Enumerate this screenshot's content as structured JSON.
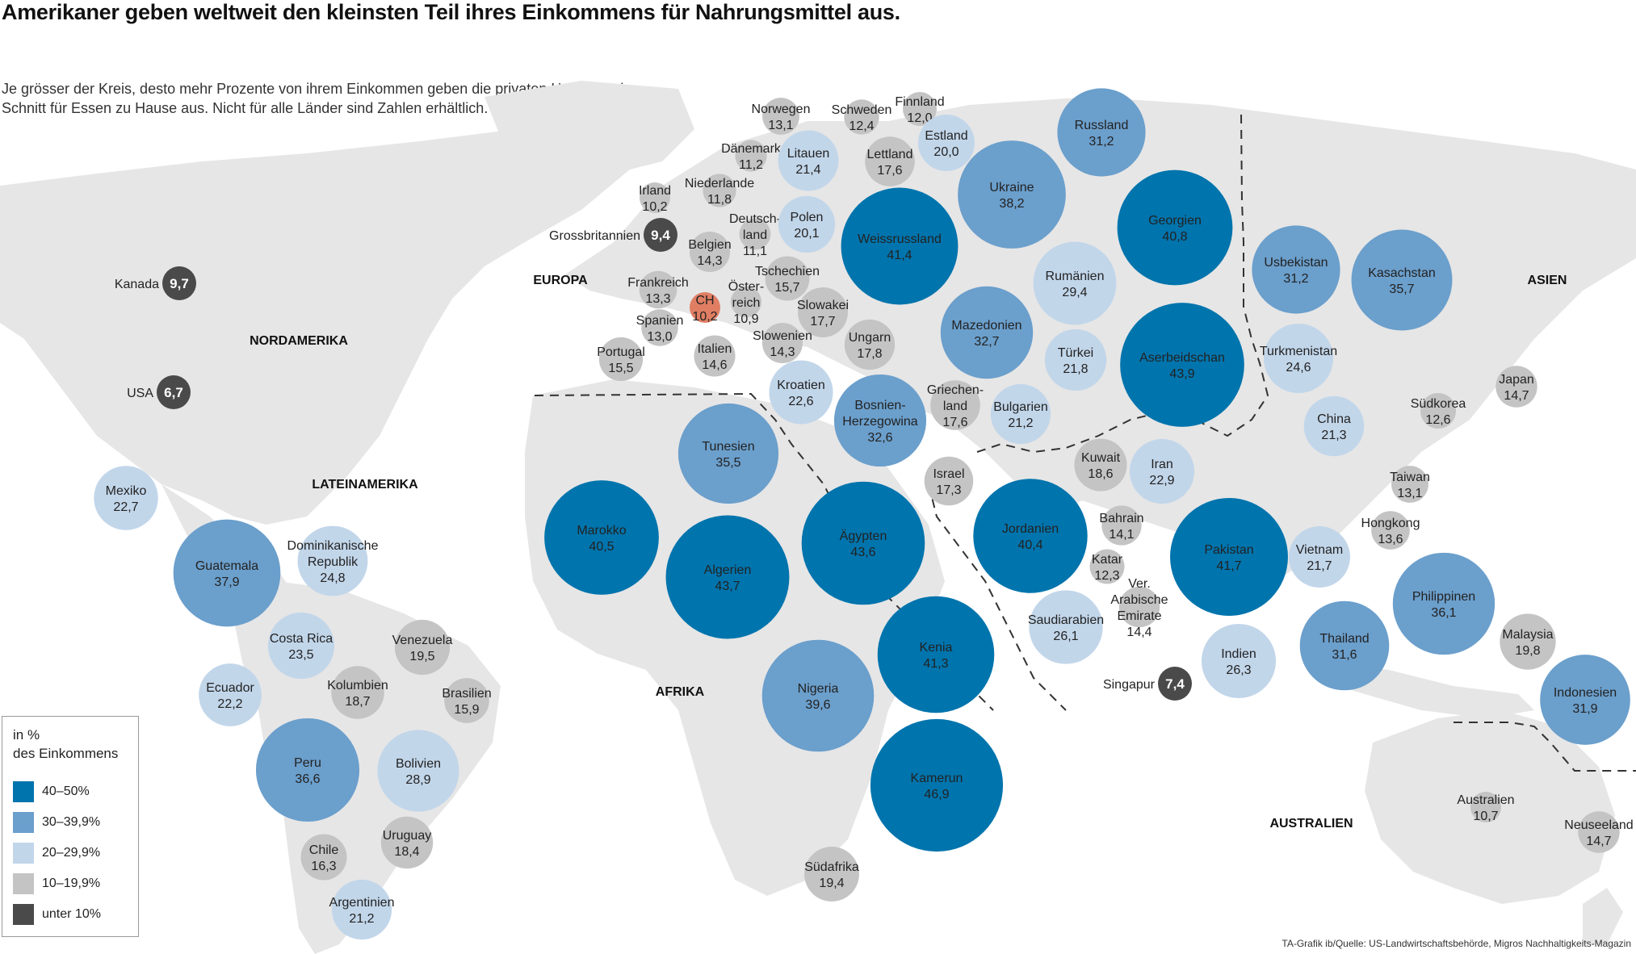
{
  "title": "Amerikaner geben weltweit den kleinsten Teil ihres Einkommens für Nahrungsmittel aus.",
  "subtitle": "Je grösser der Kreis, desto mehr Prozente von ihrem Einkommen geben die privaten Haushalte im Schnitt für Essen zu Hause aus. Nicht für alle Länder sind Zahlen erhältlich.",
  "source": "TA-Grafik ib/Quelle: US-Landwirtschaftsbehörde, Migros Nachhaltigkeits-Magazin",
  "colors": {
    "c40": "#0074ad",
    "c30": "#6b9fcc",
    "c20": "#c2d6ea",
    "c10": "#c4c4c4",
    "under10": "#4a4a4a",
    "ch": "#e07e63",
    "land": "#e6e6e6"
  },
  "legend": {
    "title_line1": "in %",
    "title_line2": "des Einkommens",
    "items": [
      {
        "label": "40–50%",
        "color": "#0074ad"
      },
      {
        "label": "30–39,9%",
        "color": "#6b9fcc"
      },
      {
        "label": "20–29,9%",
        "color": "#c2d6ea"
      },
      {
        "label": "10–19,9%",
        "color": "#c4c4c4"
      },
      {
        "label": "unter 10%",
        "color": "#4a4a4a"
      }
    ]
  },
  "regions": [
    "NORDAMERIKA",
    "LATEINAMERIKA",
    "EUROPA",
    "AFRIKA",
    "ASIEN",
    "AUSTRALIEN"
  ],
  "countries": [
    {
      "name": [
        "Kanada"
      ],
      "value": "9,7",
      "percent": 9.7,
      "group": "under10",
      "label_side": "left"
    },
    {
      "name": [
        "USA"
      ],
      "value": "6,7",
      "percent": 6.7,
      "group": "under10",
      "label_side": "left"
    },
    {
      "name": [
        "Grossbritannien"
      ],
      "value": "9,4",
      "percent": 9.4,
      "group": "under10",
      "label_side": "left"
    },
    {
      "name": [
        "Singapur"
      ],
      "value": "7,4",
      "percent": 7.4,
      "group": "under10",
      "label_side": "left"
    },
    {
      "name": [
        "Mexiko"
      ],
      "value": "22,7",
      "percent": 22.7,
      "group": "c20"
    },
    {
      "name": [
        "Guatemala"
      ],
      "value": "37,9",
      "percent": 37.9,
      "group": "c30"
    },
    {
      "name": [
        "Dominikanische",
        "Republik"
      ],
      "value": "24,8",
      "percent": 24.8,
      "group": "c20"
    },
    {
      "name": [
        "Costa Rica"
      ],
      "value": "23,5",
      "percent": 23.5,
      "group": "c20"
    },
    {
      "name": [
        "Venezuela"
      ],
      "value": "19,5",
      "percent": 19.5,
      "group": "c10"
    },
    {
      "name": [
        "Ecuador"
      ],
      "value": "22,2",
      "percent": 22.2,
      "group": "c20"
    },
    {
      "name": [
        "Kolumbien"
      ],
      "value": "18,7",
      "percent": 18.7,
      "group": "c10"
    },
    {
      "name": [
        "Brasilien"
      ],
      "value": "15,9",
      "percent": 15.9,
      "group": "c10"
    },
    {
      "name": [
        "Peru"
      ],
      "value": "36,6",
      "percent": 36.6,
      "group": "c30"
    },
    {
      "name": [
        "Bolivien"
      ],
      "value": "28,9",
      "percent": 28.9,
      "group": "c20"
    },
    {
      "name": [
        "Uruguay"
      ],
      "value": "18,4",
      "percent": 18.4,
      "group": "c10"
    },
    {
      "name": [
        "Chile"
      ],
      "value": "16,3",
      "percent": 16.3,
      "group": "c10"
    },
    {
      "name": [
        "Argentinien"
      ],
      "value": "21,2",
      "percent": 21.2,
      "group": "c20"
    },
    {
      "name": [
        "Norwegen"
      ],
      "value": "13,1",
      "percent": 13.1,
      "group": "c10"
    },
    {
      "name": [
        "Schweden"
      ],
      "value": "12,4",
      "percent": 12.4,
      "group": "c10"
    },
    {
      "name": [
        "Finnland"
      ],
      "value": "12,0",
      "percent": 12.0,
      "group": "c10"
    },
    {
      "name": [
        "Dänemark"
      ],
      "value": "11,2",
      "percent": 11.2,
      "group": "c10"
    },
    {
      "name": [
        "Litauen"
      ],
      "value": "21,4",
      "percent": 21.4,
      "group": "c20"
    },
    {
      "name": [
        "Lettland"
      ],
      "value": "17,6",
      "percent": 17.6,
      "group": "c10"
    },
    {
      "name": [
        "Estland"
      ],
      "value": "20,0",
      "percent": 20.0,
      "group": "c20"
    },
    {
      "name": [
        "Irland"
      ],
      "value": "10,2",
      "percent": 10.2,
      "group": "c10"
    },
    {
      "name": [
        "Niederlande"
      ],
      "value": "11,8",
      "percent": 11.8,
      "group": "c10"
    },
    {
      "name": [
        "Deutsch-",
        "land"
      ],
      "value": "11,1",
      "percent": 11.1,
      "group": "c10"
    },
    {
      "name": [
        "Polen"
      ],
      "value": "20,1",
      "percent": 20.1,
      "group": "c20"
    },
    {
      "name": [
        "Belgien"
      ],
      "value": "14,3",
      "percent": 14.3,
      "group": "c10"
    },
    {
      "name": [
        "Tschechien"
      ],
      "value": "15,7",
      "percent": 15.7,
      "group": "c10"
    },
    {
      "name": [
        "Frankreich"
      ],
      "value": "13,3",
      "percent": 13.3,
      "group": "c10"
    },
    {
      "name": [
        "CH"
      ],
      "value": "10,2",
      "percent": 10.2,
      "group": "ch"
    },
    {
      "name": [
        "Öster-",
        "reich"
      ],
      "value": "10,9",
      "percent": 10.9,
      "group": "c10"
    },
    {
      "name": [
        "Slowakei"
      ],
      "value": "17,7",
      "percent": 17.7,
      "group": "c10"
    },
    {
      "name": [
        "Spanien"
      ],
      "value": "13,0",
      "percent": 13.0,
      "group": "c10"
    },
    {
      "name": [
        "Slowenien"
      ],
      "value": "14,3",
      "percent": 14.3,
      "group": "c10"
    },
    {
      "name": [
        "Portugal"
      ],
      "value": "15,5",
      "percent": 15.5,
      "group": "c10"
    },
    {
      "name": [
        "Italien"
      ],
      "value": "14,6",
      "percent": 14.6,
      "group": "c10"
    },
    {
      "name": [
        "Ungarn"
      ],
      "value": "17,8",
      "percent": 17.8,
      "group": "c10"
    },
    {
      "name": [
        "Kroatien"
      ],
      "value": "22,6",
      "percent": 22.6,
      "group": "c20"
    },
    {
      "name": [
        "Weissrussland"
      ],
      "value": "41,4",
      "percent": 41.4,
      "group": "c40"
    },
    {
      "name": [
        "Ukraine"
      ],
      "value": "38,2",
      "percent": 38.2,
      "group": "c30"
    },
    {
      "name": [
        "Russland"
      ],
      "value": "31,2",
      "percent": 31.2,
      "group": "c30"
    },
    {
      "name": [
        "Georgien"
      ],
      "value": "40,8",
      "percent": 40.8,
      "group": "c40"
    },
    {
      "name": [
        "Rumänien"
      ],
      "value": "29,4",
      "percent": 29.4,
      "group": "c20"
    },
    {
      "name": [
        "Mazedonien"
      ],
      "value": "32,7",
      "percent": 32.7,
      "group": "c30"
    },
    {
      "name": [
        "Türkei"
      ],
      "value": "21,8",
      "percent": 21.8,
      "group": "c20"
    },
    {
      "name": [
        "Aserbeidschan"
      ],
      "value": "43,9",
      "percent": 43.9,
      "group": "c40"
    },
    {
      "name": [
        "Bosnien-",
        "Herzegowina"
      ],
      "value": "32,6",
      "percent": 32.6,
      "group": "c30"
    },
    {
      "name": [
        "Griechen-",
        "land"
      ],
      "value": "17,6",
      "percent": 17.6,
      "group": "c10"
    },
    {
      "name": [
        "Bulgarien"
      ],
      "value": "21,2",
      "percent": 21.2,
      "group": "c20"
    },
    {
      "name": [
        "Usbekistan"
      ],
      "value": "31,2",
      "percent": 31.2,
      "group": "c30"
    },
    {
      "name": [
        "Kasachstan"
      ],
      "value": "35,7",
      "percent": 35.7,
      "group": "c30"
    },
    {
      "name": [
        "Turkmenistan"
      ],
      "value": "24,6",
      "percent": 24.6,
      "group": "c20"
    },
    {
      "name": [
        "China"
      ],
      "value": "21,3",
      "percent": 21.3,
      "group": "c20"
    },
    {
      "name": [
        "Japan"
      ],
      "value": "14,7",
      "percent": 14.7,
      "group": "c10"
    },
    {
      "name": [
        "Südkorea"
      ],
      "value": "12,6",
      "percent": 12.6,
      "group": "c10"
    },
    {
      "name": [
        "Taiwan"
      ],
      "value": "13,1",
      "percent": 13.1,
      "group": "c10"
    },
    {
      "name": [
        "Hongkong"
      ],
      "value": "13,6",
      "percent": 13.6,
      "group": "c10"
    },
    {
      "name": [
        "Tunesien"
      ],
      "value": "35,5",
      "percent": 35.5,
      "group": "c30"
    },
    {
      "name": [
        "Marokko"
      ],
      "value": "40,5",
      "percent": 40.5,
      "group": "c40"
    },
    {
      "name": [
        "Algerien"
      ],
      "value": "43,7",
      "percent": 43.7,
      "group": "c40"
    },
    {
      "name": [
        "Ägypten"
      ],
      "value": "43,6",
      "percent": 43.6,
      "group": "c40"
    },
    {
      "name": [
        "Israel"
      ],
      "value": "17,3",
      "percent": 17.3,
      "group": "c10"
    },
    {
      "name": [
        "Jordanien"
      ],
      "value": "40,4",
      "percent": 40.4,
      "group": "c40"
    },
    {
      "name": [
        "Kuwait"
      ],
      "value": "18,6",
      "percent": 18.6,
      "group": "c10"
    },
    {
      "name": [
        "Iran"
      ],
      "value": "22,9",
      "percent": 22.9,
      "group": "c20"
    },
    {
      "name": [
        "Bahrain"
      ],
      "value": "14,1",
      "percent": 14.1,
      "group": "c10"
    },
    {
      "name": [
        "Katar"
      ],
      "value": "12,3",
      "percent": 12.3,
      "group": "c10"
    },
    {
      "name": [
        "Ver.",
        "Arabische",
        "Emirate"
      ],
      "value": "14,4",
      "percent": 14.4,
      "group": "c10"
    },
    {
      "name": [
        "Pakistan"
      ],
      "value": "41,7",
      "percent": 41.7,
      "group": "c40"
    },
    {
      "name": [
        "Vietnam"
      ],
      "value": "21,7",
      "percent": 21.7,
      "group": "c20"
    },
    {
      "name": [
        "Philippinen"
      ],
      "value": "36,1",
      "percent": 36.1,
      "group": "c30"
    },
    {
      "name": [
        "Saudiarabien"
      ],
      "value": "26,1",
      "percent": 26.1,
      "group": "c20"
    },
    {
      "name": [
        "Indien"
      ],
      "value": "26,3",
      "percent": 26.3,
      "group": "c20"
    },
    {
      "name": [
        "Thailand"
      ],
      "value": "31,6",
      "percent": 31.6,
      "group": "c30"
    },
    {
      "name": [
        "Malaysia"
      ],
      "value": "19,8",
      "percent": 19.8,
      "group": "c10"
    },
    {
      "name": [
        "Indonesien"
      ],
      "value": "31,9",
      "percent": 31.9,
      "group": "c30"
    },
    {
      "name": [
        "Nigeria"
      ],
      "value": "39,6",
      "percent": 39.6,
      "group": "c30"
    },
    {
      "name": [
        "Kenia"
      ],
      "value": "41,3",
      "percent": 41.3,
      "group": "c40"
    },
    {
      "name": [
        "Kamerun"
      ],
      "value": "46,9",
      "percent": 46.9,
      "group": "c40"
    },
    {
      "name": [
        "Südafrika"
      ],
      "value": "19,4",
      "percent": 19.4,
      "group": "c10"
    },
    {
      "name": [
        "Australien"
      ],
      "value": "10,7",
      "percent": 10.7,
      "group": "c10"
    },
    {
      "name": [
        "Neuseeland"
      ],
      "value": "14,7",
      "percent": 14.7,
      "group": "c10"
    }
  ]
}
